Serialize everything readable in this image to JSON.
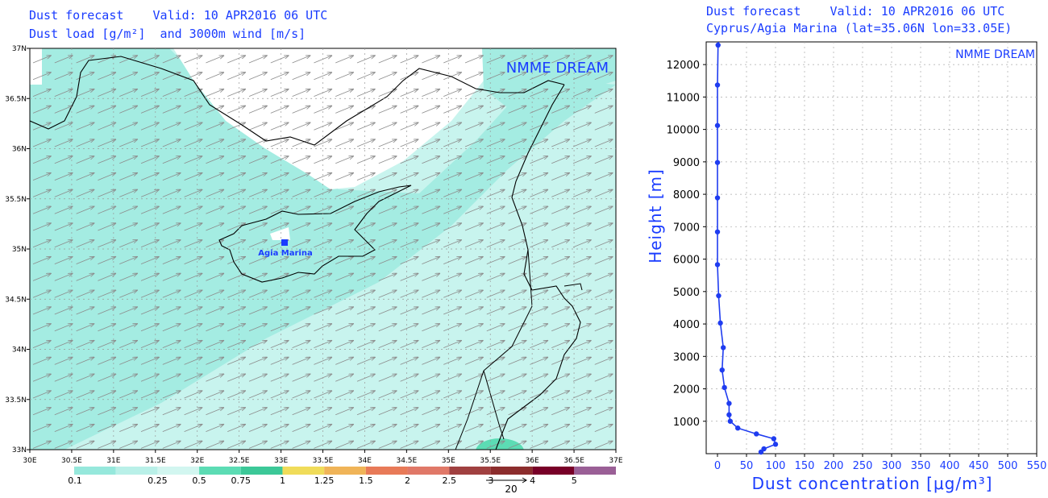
{
  "map": {
    "title_line1": "Dust forecast    Valid: 10 APR2016 06 UTC",
    "title_line2": "Dust load [g/m²]  and 3000m wind [m/s]",
    "watermark": "NMME DREAM",
    "station_label": "Agia Marina",
    "lat_labels": [
      "37N",
      "36.5N",
      "36N",
      "35.5N",
      "35N",
      "34.5N",
      "34N",
      "33.5N",
      "33N"
    ],
    "lon_labels": [
      "30E",
      "30.5E",
      "31E",
      "31.5E",
      "32E",
      "32.5E",
      "33E",
      "33.5E",
      "34E",
      "34.5E",
      "35E",
      "35.5E",
      "36E",
      "36.5E",
      "37E"
    ],
    "colorbar": {
      "colors": [
        "#96e8dc",
        "#b9f0e8",
        "#d2f6f0",
        "#5cdcb4",
        "#3cc898",
        "#f0dc5a",
        "#f0b458",
        "#e87a58",
        "#e07868",
        "#a04040",
        "#8c2d2d",
        "#780028",
        "#9a5f96"
      ],
      "labels": [
        "0.1",
        "0.25",
        "0.5",
        "0.75",
        "1",
        "1.25",
        "1.5",
        "2",
        "2.5",
        "3",
        "4",
        "5"
      ]
    },
    "wind_reference": "20",
    "colors": {
      "land_low": "#a4ece2",
      "land_light": "#c8f4ee",
      "high": "#5cdcb4",
      "wind_arrow": "#8c8c8c",
      "coast": "#000000"
    }
  },
  "profile": {
    "title_line1": "Dust forecast    Valid: 10 APR2016 06 UTC",
    "title_line2": "Cyprus/Agia Marina (lat=35.06N lon=33.05E)",
    "watermark": "NMME DREAM",
    "ylabel": "Height [m]",
    "xlabel": "Dust concentration [μg/m³]",
    "chart_data": {
      "type": "line",
      "xlabel": "Dust concentration [μg/m³]",
      "ylabel": "Height [m]",
      "xlim": [
        0,
        550
      ],
      "ylim": [
        0,
        12600
      ],
      "x_ticks": [
        0,
        50,
        100,
        150,
        200,
        250,
        300,
        350,
        400,
        450,
        500,
        550
      ],
      "y_ticks": [
        1000,
        2000,
        3000,
        4000,
        5000,
        6000,
        7000,
        8000,
        9000,
        10000,
        11000,
        12000
      ],
      "grid": true,
      "series": [
        {
          "color": "#1f3cf0",
          "x": [
            75,
            80,
            100,
            97,
            67,
            35,
            22,
            20,
            20,
            12,
            8,
            10,
            5,
            2,
            0,
            0,
            0,
            0,
            0,
            0,
            1,
            2
          ],
          "y": [
            50,
            150,
            290,
            460,
            610,
            790,
            1000,
            1200,
            1550,
            2040,
            2580,
            3270,
            4030,
            4870,
            5830,
            6840,
            7890,
            8980,
            10120,
            11370,
            12600,
            13000
          ]
        }
      ]
    }
  }
}
